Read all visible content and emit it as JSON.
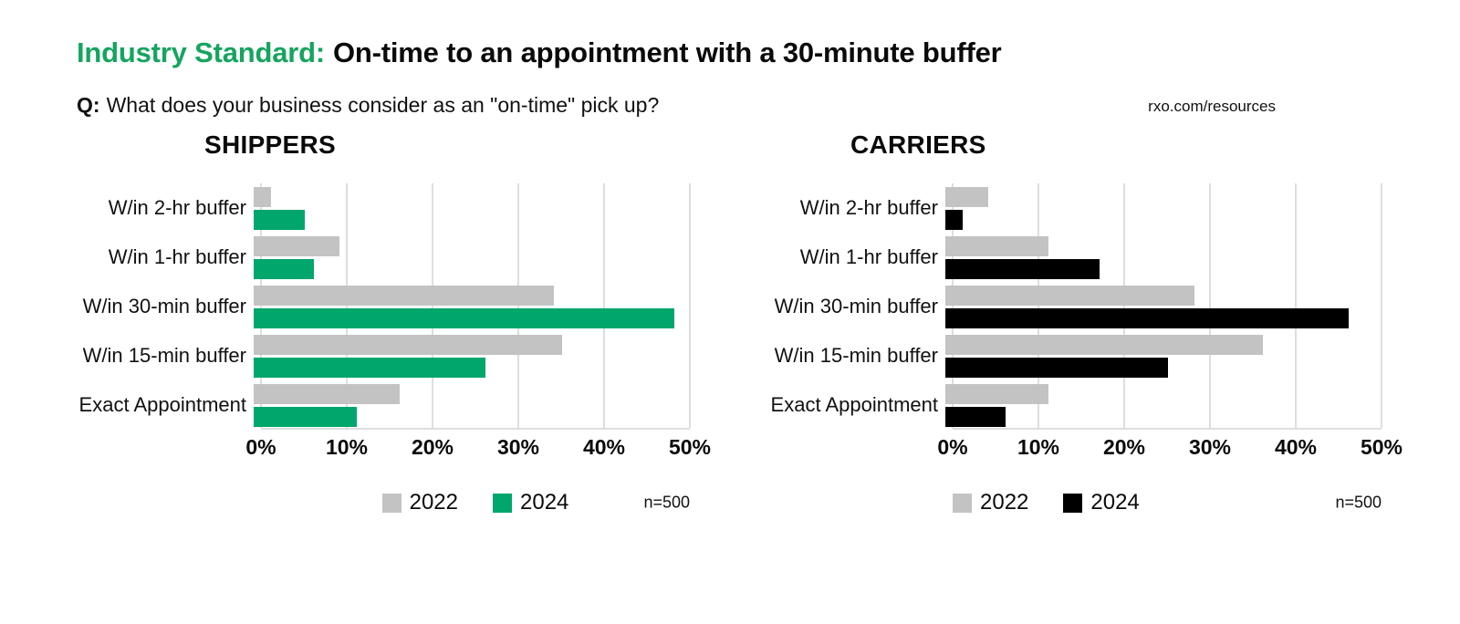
{
  "header": {
    "title_highlight": "Industry Standard:",
    "title_rest": "On-time to an appointment with a 30-minute buffer",
    "question_prefix": "Q:",
    "question_text": "What does your business consider as an \"on-time\" pick up?",
    "source_link": "rxo.com/resources"
  },
  "colors": {
    "title_green": "#16A45F",
    "bar_green": "#00A66B",
    "bar_gray": "#C3C3C3",
    "bar_black": "#000000",
    "gridline": "#DEDEDE"
  },
  "chart_data": [
    {
      "type": "bar",
      "orientation": "horizontal",
      "title": "SHIPPERS",
      "categories": [
        "W/in 2-hr buffer",
        "W/in 1-hr buffer",
        "W/in 30-min buffer",
        "W/in 15-min buffer",
        "Exact Appointment"
      ],
      "series": [
        {
          "name": "2022",
          "color": "#C3C3C3",
          "values": [
            2,
            10,
            35,
            36,
            17
          ]
        },
        {
          "name": "2024",
          "color": "#00A66B",
          "values": [
            6,
            7,
            49,
            27,
            12
          ]
        }
      ],
      "xlim": [
        0,
        50
      ],
      "x_ticks": [
        "0%",
        "10%",
        "20%",
        "30%",
        "40%",
        "50%"
      ],
      "grid": true,
      "legend_position": "bottom",
      "sample_note": "n=500"
    },
    {
      "type": "bar",
      "orientation": "horizontal",
      "title": "CARRIERS",
      "categories": [
        "W/in 2-hr buffer",
        "W/in 1-hr buffer",
        "W/in 30-min buffer",
        "W/in 15-min buffer",
        "Exact Appointment"
      ],
      "series": [
        {
          "name": "2022",
          "color": "#C3C3C3",
          "values": [
            5,
            12,
            29,
            37,
            12
          ]
        },
        {
          "name": "2024",
          "color": "#000000",
          "values": [
            2,
            18,
            47,
            26,
            7
          ]
        }
      ],
      "xlim": [
        0,
        50
      ],
      "x_ticks": [
        "0%",
        "10%",
        "20%",
        "30%",
        "40%",
        "50%"
      ],
      "grid": true,
      "legend_position": "bottom",
      "sample_note": "n=500"
    }
  ]
}
